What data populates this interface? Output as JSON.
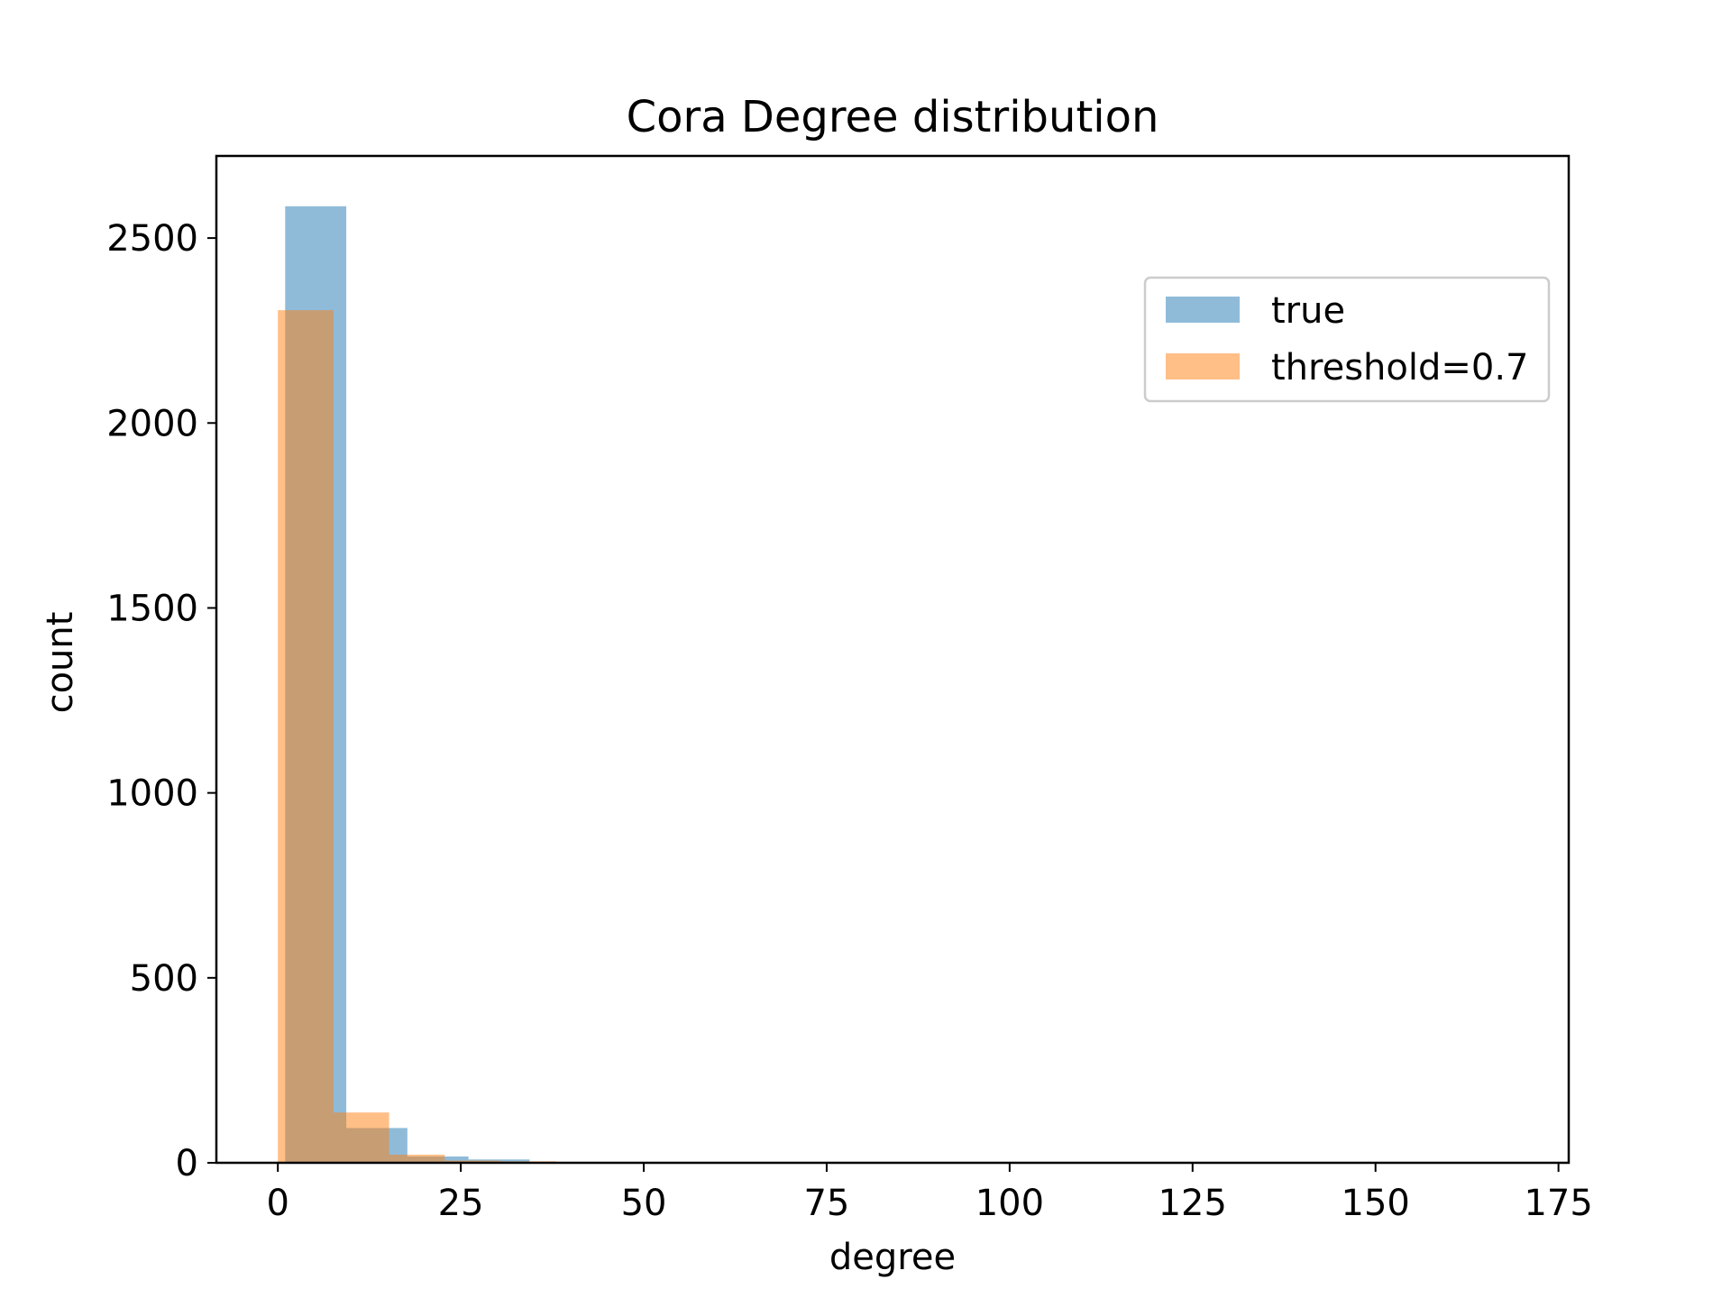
{
  "chart_data": {
    "type": "bar",
    "subtype": "histogram",
    "title": "Cora Degree distribution",
    "xlabel": "degree",
    "ylabel": "count",
    "xlim": [
      -8.4,
      176.4
    ],
    "ylim": [
      0,
      2722
    ],
    "xticks": [
      0,
      25,
      50,
      75,
      100,
      125,
      150,
      175
    ],
    "yticks": [
      0,
      500,
      1000,
      1500,
      2000,
      2500
    ],
    "grid": false,
    "legend_position": "upper right",
    "series": [
      {
        "name": "true",
        "color": "#1f77b4",
        "alpha": 0.5,
        "bin_edges": [
          1.0,
          9.35,
          17.7,
          26.05,
          34.4,
          42.75,
          51.1,
          59.45,
          67.8,
          76.15,
          84.5,
          92.85,
          101.2,
          109.55,
          117.9,
          126.25,
          134.6,
          142.95,
          151.3,
          159.65,
          168.0
        ],
        "counts": [
          2586,
          94,
          17,
          9,
          2,
          1,
          1,
          0,
          0,
          0,
          0,
          0,
          0,
          0,
          0,
          0,
          0,
          0,
          0,
          1
        ]
      },
      {
        "name": "threshold=0.7",
        "color": "#ff7f0e",
        "alpha": 0.5,
        "bin_edges": [
          0.0,
          7.6,
          15.2,
          22.8,
          30.4,
          38.0,
          45.6,
          53.2,
          60.8,
          68.4,
          76.0
        ],
        "counts": [
          2305,
          136,
          22,
          6,
          4,
          2,
          0,
          0,
          0,
          1
        ]
      }
    ]
  }
}
